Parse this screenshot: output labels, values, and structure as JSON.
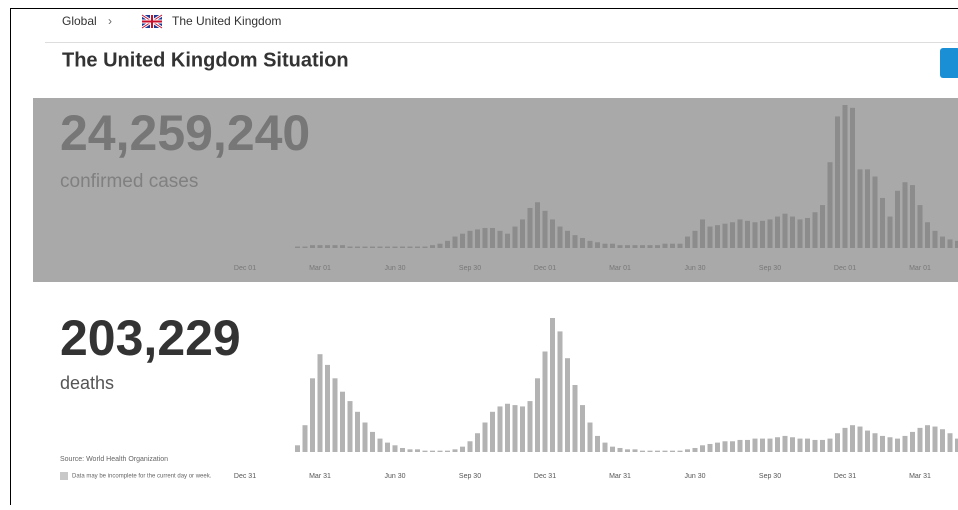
{
  "breadcrumb": {
    "root": "Global",
    "separator": "›",
    "current": "The United Kingdom"
  },
  "heading": "The United Kingdom Situation",
  "chart_data": [
    {
      "type": "bar",
      "headline": "24,259,240",
      "headline_label": "confirmed cases",
      "color": "#8c8c8c",
      "background": "#a9a9a9",
      "categories": [
        "Dec 01",
        null,
        null,
        null,
        null,
        null,
        null,
        null,
        null,
        null,
        "Mar 01",
        null,
        null,
        null,
        null,
        null,
        null,
        null,
        null,
        null,
        "Jun 30",
        null,
        null,
        null,
        null,
        null,
        null,
        null,
        null,
        null,
        "Sep 30",
        null,
        null,
        null,
        null,
        null,
        null,
        null,
        null,
        null,
        "Dec 01",
        null,
        null,
        null,
        null,
        null,
        null,
        null,
        null,
        null,
        "Mar 01",
        null,
        null,
        null,
        null,
        null,
        null,
        null,
        null,
        null,
        "Jun 30",
        null,
        null,
        null,
        null,
        null,
        null,
        null,
        null,
        null,
        "Sep 30",
        null,
        null,
        null,
        null,
        null,
        null,
        null,
        null,
        null,
        "Dec 01",
        null,
        null,
        null,
        null,
        null,
        null,
        null,
        null,
        null,
        "Mar 01",
        null,
        null,
        null,
        null,
        null,
        null,
        null
      ],
      "values": [
        0,
        0,
        0,
        0,
        0,
        0,
        0,
        1,
        1,
        2,
        2,
        2,
        2,
        2,
        1,
        1,
        1,
        1,
        1,
        1,
        1,
        1,
        1,
        1,
        1,
        2,
        3,
        5,
        8,
        10,
        12,
        13,
        14,
        14,
        12,
        10,
        15,
        20,
        28,
        32,
        26,
        20,
        15,
        12,
        9,
        7,
        5,
        4,
        3,
        3,
        2,
        2,
        2,
        2,
        2,
        2,
        3,
        3,
        3,
        8,
        12,
        20,
        15,
        16,
        17,
        18,
        20,
        19,
        18,
        19,
        20,
        22,
        24,
        22,
        20,
        21,
        25,
        30,
        60,
        92,
        100,
        98,
        55,
        55,
        50,
        35,
        22,
        40,
        46,
        44,
        30,
        18,
        12,
        8,
        6,
        5,
        4,
        3
      ]
    },
    {
      "type": "bar",
      "headline": "203,229",
      "headline_label": "deaths",
      "color": "#b3b3b3",
      "background": "#ffffff",
      "categories": [
        "Dec 31",
        null,
        null,
        null,
        null,
        null,
        null,
        null,
        null,
        null,
        "Mar 31",
        null,
        null,
        null,
        null,
        null,
        null,
        null,
        null,
        null,
        "Jun 30",
        null,
        null,
        null,
        null,
        null,
        null,
        null,
        null,
        null,
        "Sep 30",
        null,
        null,
        null,
        null,
        null,
        null,
        null,
        null,
        null,
        "Dec 31",
        null,
        null,
        null,
        null,
        null,
        null,
        null,
        null,
        null,
        "Mar 31",
        null,
        null,
        null,
        null,
        null,
        null,
        null,
        null,
        null,
        "Jun 30",
        null,
        null,
        null,
        null,
        null,
        null,
        null,
        null,
        null,
        "Sep 30",
        null,
        null,
        null,
        null,
        null,
        null,
        null,
        null,
        null,
        "Dec 31",
        null,
        null,
        null,
        null,
        null,
        null,
        null,
        null,
        null,
        "Mar 31",
        null,
        null,
        null,
        null,
        null,
        null,
        null
      ],
      "values": [
        0,
        0,
        0,
        0,
        0,
        0,
        0,
        5,
        20,
        55,
        73,
        65,
        55,
        45,
        38,
        30,
        22,
        15,
        10,
        7,
        5,
        3,
        2,
        2,
        1,
        1,
        1,
        1,
        2,
        4,
        8,
        14,
        22,
        30,
        34,
        36,
        35,
        34,
        38,
        55,
        75,
        100,
        90,
        70,
        50,
        35,
        22,
        12,
        7,
        4,
        3,
        2,
        2,
        1,
        1,
        1,
        1,
        1,
        1,
        2,
        3,
        5,
        6,
        7,
        8,
        8,
        9,
        9,
        10,
        10,
        10,
        11,
        12,
        11,
        10,
        10,
        9,
        9,
        10,
        14,
        18,
        20,
        19,
        16,
        14,
        12,
        11,
        10,
        12,
        15,
        18,
        20,
        19,
        17,
        14,
        10,
        7,
        5
      ]
    }
  ],
  "source": "Source: World Health Organization",
  "note": "Data may be incomplete for the current day or week."
}
